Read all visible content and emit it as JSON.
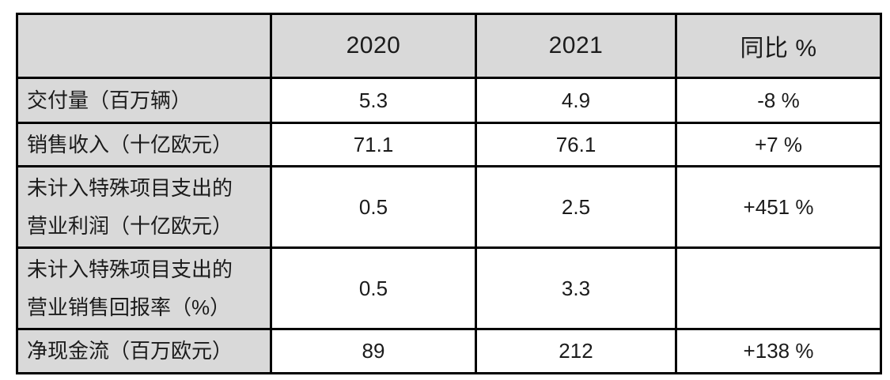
{
  "table": {
    "style": {
      "header_bg": "#d9d9d9",
      "border_color": "#000000",
      "text_color": "#1b1b1b"
    },
    "header": {
      "col0": "",
      "col1": "2020",
      "col2": "2021",
      "col3": "同比 %"
    },
    "rows": [
      {
        "label": "交付量（百万辆）",
        "y2020": "5.3",
        "y2021": "4.9",
        "yoy": "-8 %"
      },
      {
        "label": "销售收入（十亿欧元）",
        "y2020": "71.1",
        "y2021": "76.1",
        "yoy": "+7 %"
      },
      {
        "label": "未计入特殊项目支出的\n营业利润（十亿欧元）",
        "y2020": "0.5",
        "y2021": "2.5",
        "yoy": "+451 %"
      },
      {
        "label": "未计入特殊项目支出的\n营业销售回报率（%）",
        "y2020": "0.5",
        "y2021": "3.3",
        "yoy": ""
      },
      {
        "label": "净现金流（百万欧元）",
        "y2020": "89",
        "y2021": "212",
        "yoy": "+138 %"
      }
    ]
  },
  "chart_data": {
    "type": "table",
    "columns": [
      "",
      "2020",
      "2021",
      "同比 %"
    ],
    "rows": [
      [
        "交付量（百万辆）",
        5.3,
        4.9,
        "-8 %"
      ],
      [
        "销售收入（十亿欧元）",
        71.1,
        76.1,
        "+7 %"
      ],
      [
        "未计入特殊项目支出的营业利润（十亿欧元）",
        0.5,
        2.5,
        "+451 %"
      ],
      [
        "未计入特殊项目支出的营业销售回报率（%）",
        0.5,
        3.3,
        ""
      ],
      [
        "净现金流（百万欧元）",
        89,
        212,
        "+138 %"
      ]
    ],
    "layout": {
      "header_fill": "#d9d9d9",
      "label_column_fill": "#d9d9d9",
      "body_fill": "#ffffff",
      "grid": "on"
    }
  }
}
